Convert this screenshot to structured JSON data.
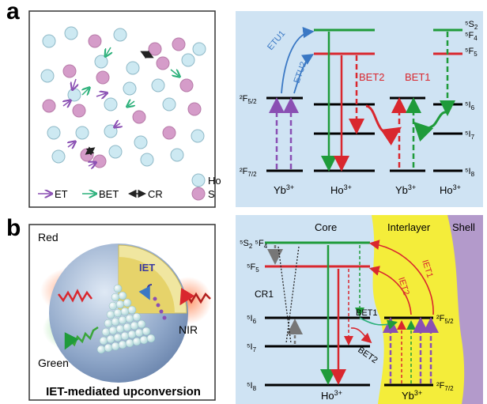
{
  "panel_a": {
    "letter": "a",
    "ions": {
      "ho_label": "Ho",
      "s_label": "S",
      "et": "ET",
      "bet": "BET",
      "cr": "CR"
    },
    "levels_left": {
      "f52": "2F5/2",
      "f72": "2F7/2",
      "s2": "5S2",
      "f4": "5F4",
      "f5": "5F5",
      "i6": "5I6",
      "i7": "5I7",
      "i8": "5I8"
    },
    "labels": {
      "etu1": "ETU1",
      "etu2": "ETU2",
      "bet2": "BET2",
      "bet1": "BET1",
      "yb_left": "Yb3+",
      "ho_mid": "Ho3+",
      "yb_right": "Yb3+",
      "ho_right": "Ho3+"
    }
  },
  "panel_b": {
    "letter": "b",
    "particle": {
      "red": "Red",
      "nir": "NIR",
      "green": "Green",
      "iet": "IET",
      "caption": "IET-mediated upconversion"
    },
    "regions": {
      "core": "Core",
      "interlayer": "Interlayer",
      "shell": "Shell"
    },
    "levels": {
      "s2f4": "5S2 5F4",
      "f5": "5F5",
      "i6": "5I6",
      "i7": "5I7",
      "i8": "5I8",
      "f52": "2F5/2",
      "f72": "2F7/2"
    },
    "labels": {
      "cr1": "CR1",
      "bet1": "BET1",
      "bet2": "BET2",
      "iet1": "IET1",
      "iet2": "IET2",
      "ho": "Ho3+",
      "yb": "Yb3+"
    }
  },
  "colors": {
    "ho_fill": "#cde9f2",
    "s_fill": "#d59cc9",
    "et_arrow": "#8a4fb3",
    "bet_arrow": "#2bb07a",
    "red": "#d9272e",
    "green": "#1f9b3a",
    "blue": "#3a78c4",
    "purple": "#8a4fb3",
    "panel_bg": "#cfe3f3",
    "interlayer": "#f4ed3a",
    "shell": "#b39acb"
  }
}
